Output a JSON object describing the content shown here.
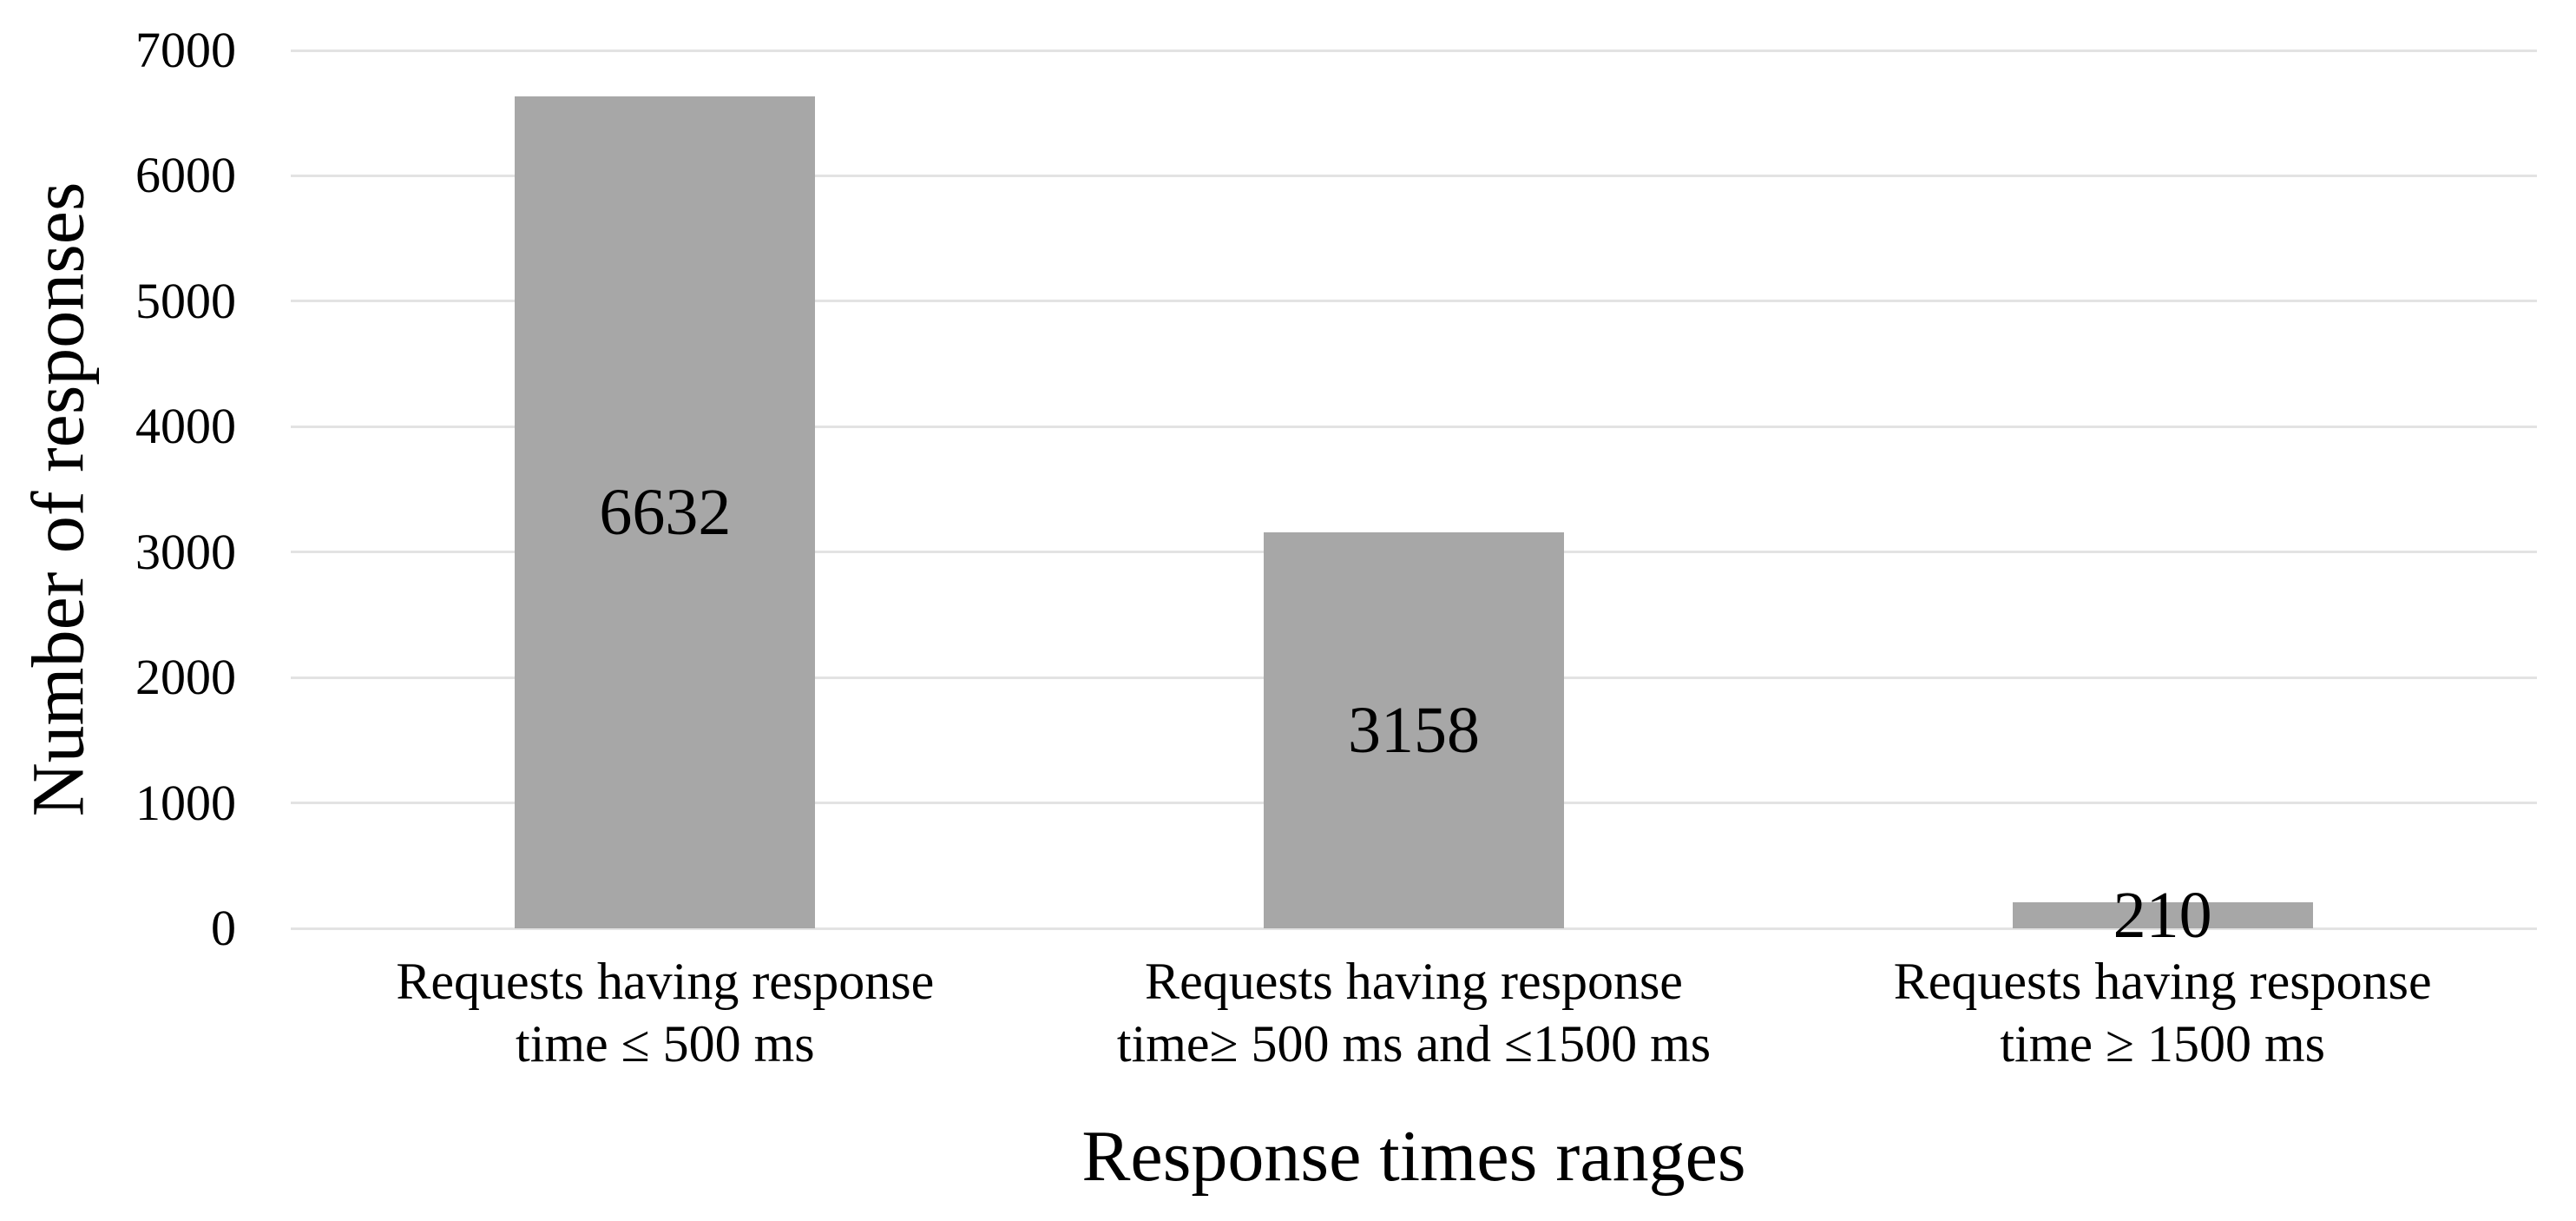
{
  "chart_data": {
    "type": "bar",
    "title": "",
    "xlabel": "Response times ranges",
    "ylabel": "Number of responses",
    "categories": [
      [
        "Requests having response",
        "time ≤ 500 ms"
      ],
      [
        "Requests having response",
        "time≥ 500 ms and ≤1500 ms"
      ],
      [
        "Requests having response",
        "time ≥ 1500 ms"
      ]
    ],
    "values": [
      6632,
      3158,
      210
    ],
    "value_labels": [
      "6632",
      "3158",
      "210"
    ],
    "ylim": [
      0,
      7000
    ],
    "yticks": [
      0,
      1000,
      2000,
      3000,
      4000,
      5000,
      6000,
      7000
    ],
    "grid": "horizontal",
    "legend_position": "none",
    "bar_color": "#a7a7a7",
    "gridline_color": "#e3e3e3",
    "text_color": "#000000",
    "background_color": "#ffffff"
  }
}
